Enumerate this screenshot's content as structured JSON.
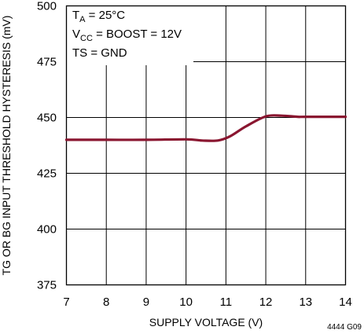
{
  "colors": {
    "curve": "#8a1630",
    "grid": "#000000",
    "background": "#ffffff"
  },
  "chart_data": {
    "type": "line",
    "xlabel": "SUPPLY VOLTAGE (V)",
    "ylabel": "TG OR BG INPUT THRESHOLD HYSTERESIS (mV)",
    "xlim": [
      7,
      14
    ],
    "ylim": [
      375,
      500
    ],
    "x_ticks": [
      7,
      8,
      9,
      10,
      11,
      12,
      13,
      14
    ],
    "y_ticks": [
      375,
      400,
      425,
      450,
      475,
      500
    ],
    "grid": true,
    "series": [
      {
        "x": [
          7,
          8,
          9,
          10,
          10.4,
          10.8,
          11.1,
          11.5,
          12.0,
          12.4,
          12.8,
          13,
          14
        ],
        "y": [
          440,
          440,
          440,
          440.2,
          439.7,
          439.7,
          441.5,
          446,
          450.5,
          450.8,
          450.3,
          450.3,
          450.3
        ]
      }
    ],
    "annotations": {
      "line1": {
        "main": "T",
        "sub": "A",
        "rest": " = 25°C"
      },
      "line2": {
        "main": "V",
        "sub": "CC",
        "rest": " = BOOST = 12V"
      },
      "line3": "TS = GND"
    },
    "figure_id": "4444 G09"
  }
}
